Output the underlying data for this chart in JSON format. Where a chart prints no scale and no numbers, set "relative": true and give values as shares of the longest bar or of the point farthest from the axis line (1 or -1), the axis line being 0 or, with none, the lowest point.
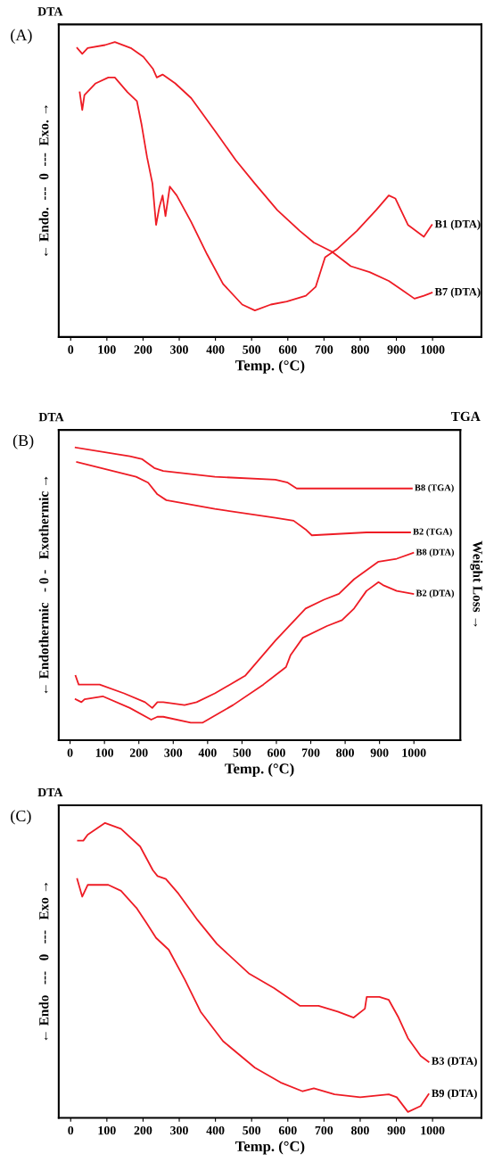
{
  "chart_data": [
    {
      "type": "line",
      "title": "(A)",
      "xlabel": "Temp. (°C)",
      "ylabel": "← Endo.  ---  0  ---  Exo. →",
      "annotations": [
        "DTA"
      ],
      "relative": true,
      "xlim": [
        -33,
        1135
      ],
      "xticks": [
        0,
        100,
        200,
        300,
        400,
        500,
        600,
        700,
        800,
        900,
        1000
      ],
      "grid": false,
      "legend": false,
      "line_style": "solid",
      "marker": "none",
      "series": [
        {
          "name": "B1 (DTA)",
          "color": "#ee1c25",
          "x": [
            25,
            32,
            38,
            69,
            104,
            122,
            157,
            183,
            196,
            211,
            226,
            236,
            245,
            254,
            262,
            274,
            293,
            333,
            377,
            421,
            474,
            509,
            553,
            597,
            650,
            677,
            703,
            738,
            791,
            844,
            879,
            897,
            932,
            976,
            998
          ],
          "values": [
            0.83,
            0.77,
            0.82,
            0.86,
            0.88,
            0.88,
            0.83,
            0.8,
            0.72,
            0.61,
            0.52,
            0.38,
            0.44,
            0.48,
            0.41,
            0.51,
            0.48,
            0.39,
            0.28,
            0.18,
            0.11,
            0.09,
            0.11,
            0.12,
            0.14,
            0.17,
            0.27,
            0.3,
            0.36,
            0.43,
            0.48,
            0.47,
            0.38,
            0.34,
            0.38
          ]
        },
        {
          "name": "B7 (DTA)",
          "color": "#ee1c25",
          "x": [
            18,
            32,
            47,
            95,
            122,
            166,
            201,
            227,
            238,
            254,
            289,
            333,
            404,
            456,
            509,
            571,
            633,
            672,
            721,
            774,
            826,
            879,
            915,
            950,
            976,
            998
          ],
          "values": [
            0.98,
            0.96,
            0.98,
            0.99,
            1.0,
            0.98,
            0.95,
            0.91,
            0.88,
            0.89,
            0.86,
            0.81,
            0.69,
            0.6,
            0.52,
            0.43,
            0.36,
            0.32,
            0.29,
            0.24,
            0.22,
            0.19,
            0.16,
            0.13,
            0.14,
            0.15
          ]
        }
      ]
    },
    {
      "type": "line",
      "title": "(B)",
      "xlabel": "Temp. (°C)",
      "ylabel": "← Endothermic   - 0 -   Exothermic →",
      "y2label": "Weight Loss →",
      "annotations": [
        "DTA",
        "TGA"
      ],
      "relative": true,
      "xlim": [
        -33,
        1135
      ],
      "xticks": [
        0,
        100,
        200,
        300,
        400,
        500,
        600,
        700,
        800,
        900,
        1000
      ],
      "grid": false,
      "legend": false,
      "line_style": "solid",
      "marker": "none",
      "series": [
        {
          "name": "B8 (TGA)",
          "color": "#ee1c25",
          "x": [
            16,
            174,
            210,
            245,
            271,
            421,
            597,
            633,
            659,
            994
          ],
          "values": [
            1.0,
            0.97,
            0.96,
            0.93,
            0.92,
            0.9,
            0.89,
            0.88,
            0.86,
            0.86
          ]
        },
        {
          "name": "B2 (TGA)",
          "color": "#ee1c25",
          "x": [
            20,
            192,
            227,
            254,
            280,
            421,
            597,
            650,
            685,
            703,
            862,
            989
          ],
          "values": [
            0.95,
            0.9,
            0.88,
            0.84,
            0.82,
            0.79,
            0.76,
            0.75,
            0.72,
            0.7,
            0.71,
            0.71
          ]
        },
        {
          "name": "B8 (DTA)",
          "color": "#ee1c25",
          "x": [
            16,
            25,
            42,
            86,
            157,
            218,
            239,
            254,
            271,
            333,
            368,
            421,
            509,
            597,
            685,
            738,
            782,
            826,
            897,
            950,
            998
          ],
          "values": [
            0.22,
            0.19,
            0.19,
            0.19,
            0.16,
            0.13,
            0.11,
            0.13,
            0.13,
            0.12,
            0.13,
            0.16,
            0.22,
            0.34,
            0.45,
            0.48,
            0.5,
            0.55,
            0.61,
            0.62,
            0.64
          ]
        },
        {
          "name": "B2 (DTA)",
          "color": "#ee1c25",
          "x": [
            16,
            33,
            42,
            95,
            174,
            236,
            254,
            271,
            351,
            386,
            474,
            562,
            628,
            641,
            677,
            747,
            791,
            826,
            862,
            897,
            910,
            950,
            998
          ],
          "values": [
            0.14,
            0.13,
            0.14,
            0.15,
            0.11,
            0.07,
            0.08,
            0.08,
            0.06,
            0.06,
            0.12,
            0.19,
            0.25,
            0.29,
            0.35,
            0.39,
            0.41,
            0.45,
            0.51,
            0.54,
            0.53,
            0.51,
            0.5
          ]
        }
      ]
    },
    {
      "type": "line",
      "title": "(C)",
      "xlabel": "Temp. (°C)",
      "ylabel": "← Endo   ---   0   ---   Exo →",
      "annotations": [
        "DTA"
      ],
      "relative": true,
      "xlim": [
        -33,
        1135
      ],
      "xticks": [
        0,
        100,
        200,
        300,
        400,
        500,
        600,
        700,
        800,
        900,
        1000
      ],
      "grid": false,
      "legend": false,
      "line_style": "solid",
      "marker": "none",
      "series": [
        {
          "name": "B3 (DTA)",
          "color": "#ee1c25",
          "x": [
            20,
            35,
            47,
            95,
            139,
            192,
            227,
            240,
            263,
            298,
            351,
            404,
            492,
            562,
            633,
            685,
            738,
            782,
            813,
            818,
            853,
            879,
            906,
            932,
            967,
            989
          ],
          "values": [
            0.94,
            0.94,
            0.96,
            1.0,
            0.98,
            0.92,
            0.84,
            0.82,
            0.81,
            0.76,
            0.67,
            0.59,
            0.49,
            0.44,
            0.38,
            0.38,
            0.36,
            0.34,
            0.37,
            0.41,
            0.41,
            0.4,
            0.34,
            0.27,
            0.21,
            0.19
          ]
        },
        {
          "name": "B9 (DTA)",
          "color": "#ee1c25",
          "x": [
            18,
            32,
            47,
            104,
            139,
            183,
            210,
            236,
            271,
            315,
            359,
            421,
            509,
            580,
            641,
            672,
            729,
            800,
            879,
            901,
            932,
            967,
            989
          ],
          "values": [
            0.81,
            0.75,
            0.79,
            0.79,
            0.77,
            0.71,
            0.66,
            0.61,
            0.57,
            0.47,
            0.36,
            0.26,
            0.17,
            0.12,
            0.09,
            0.1,
            0.08,
            0.07,
            0.08,
            0.07,
            0.02,
            0.04,
            0.08
          ]
        }
      ]
    }
  ]
}
